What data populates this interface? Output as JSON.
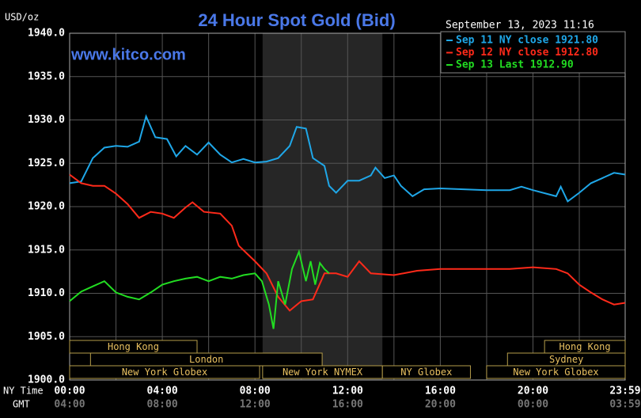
{
  "chart_data": {
    "type": "line",
    "title": "24 Hour Spot Gold (Bid)",
    "watermark": "www.kitco.com",
    "timestamp": "September 13, 2023 11:16",
    "y_label": "USD/oz",
    "x_label": "NY Time",
    "x2_label": "GMT",
    "xlim": [
      0,
      23.98
    ],
    "xticks": [
      {
        "value": 0,
        "label": "00:00"
      },
      {
        "value": 4,
        "label": "04:00"
      },
      {
        "value": 8,
        "label": "08:00"
      },
      {
        "value": 12,
        "label": "12:00"
      },
      {
        "value": 16,
        "label": "16:00"
      },
      {
        "value": 20,
        "label": "20:00"
      },
      {
        "value": 23.98,
        "label": "23:59"
      }
    ],
    "x2ticklabels": [
      "04:00",
      "08:00",
      "12:00",
      "16:00",
      "20:00",
      "00:00",
      "03:59"
    ],
    "xminor": [
      2,
      6,
      10,
      14,
      18,
      22
    ],
    "ylim": [
      1900,
      1940
    ],
    "yticks": [
      {
        "value": 1900,
        "label": "1900.0"
      },
      {
        "value": 1905,
        "label": "1905.0"
      },
      {
        "value": 1910,
        "label": "1910.0"
      },
      {
        "value": 1915,
        "label": "1915.0"
      },
      {
        "value": 1920,
        "label": "1920.0"
      },
      {
        "value": 1925,
        "label": "1925.0"
      },
      {
        "value": 1930,
        "label": "1930.0"
      },
      {
        "value": 1935,
        "label": "1935.0"
      },
      {
        "value": 1940,
        "label": "1940.0"
      }
    ],
    "grid": true,
    "highlight": [
      8.33,
      13.5
    ],
    "sessions": [
      [
        {
          "name": "Hong Kong",
          "start": 0,
          "end": 5.5
        },
        {
          "name": "Hong Kong",
          "start": 20.5,
          "end": 23.98
        }
      ],
      [
        {
          "name": "London",
          "start": 0.9,
          "end": 10.9
        },
        {
          "name": "Sydney",
          "start": 18.9,
          "end": 23.98
        }
      ],
      [
        {
          "name": "New York Globex",
          "start": 0,
          "end": 8.2
        },
        {
          "name": "New York NYMEX",
          "start": 8.33,
          "end": 13.5
        },
        {
          "name": "NY Globex",
          "start": 13.5,
          "end": 17.3
        },
        {
          "name": "New York Globex",
          "start": 18,
          "end": 23.98
        }
      ]
    ],
    "series": [
      {
        "name": "Sep 11 NY close 1921.80",
        "color": "#1fa7e8",
        "x": [
          0,
          0.5,
          1,
          1.5,
          2,
          2.5,
          3,
          3.3,
          3.7,
          4.2,
          4.6,
          5,
          5.5,
          6,
          6.5,
          7,
          7.5,
          8,
          8.5,
          9,
          9.5,
          9.8,
          10.2,
          10.5,
          11,
          11.2,
          11.5,
          12,
          12.5,
          13,
          13.2,
          13.6,
          14,
          14.3,
          14.8,
          15.3,
          16,
          17,
          18,
          19,
          19.5,
          20,
          21,
          21.2,
          21.5,
          22,
          22.5,
          23,
          23.5,
          23.98
        ],
        "values": [
          1922.7,
          1922.9,
          1925.6,
          1926.8,
          1927.0,
          1926.9,
          1927.5,
          1930.4,
          1928.0,
          1927.8,
          1925.8,
          1927.0,
          1926.0,
          1927.4,
          1926.0,
          1925.1,
          1925.5,
          1925.1,
          1925.2,
          1925.6,
          1927.0,
          1929.2,
          1929.0,
          1925.6,
          1924.7,
          1922.4,
          1921.6,
          1923.0,
          1923.0,
          1923.6,
          1924.5,
          1923.3,
          1923.6,
          1922.4,
          1921.2,
          1922.0,
          1922.1,
          1922.0,
          1921.9,
          1921.9,
          1922.3,
          1921.9,
          1921.2,
          1922.3,
          1920.6,
          1921.6,
          1922.7,
          1923.3,
          1923.9,
          1923.7
        ]
      },
      {
        "name": "Sep 12 NY close 1912.80",
        "color": "#ff2a1a",
        "x": [
          0,
          0.5,
          1,
          1.5,
          2,
          2.5,
          3,
          3.5,
          4,
          4.5,
          5,
          5.3,
          5.8,
          6.5,
          7,
          7.3,
          8,
          8.5,
          9,
          9.5,
          10,
          10.5,
          11,
          11.5,
          12,
          12.5,
          13,
          14,
          15,
          16,
          17,
          18,
          19,
          20,
          21,
          21.5,
          22,
          22.5,
          23,
          23.5,
          23.98
        ],
        "values": [
          1923.7,
          1922.7,
          1922.4,
          1922.4,
          1921.5,
          1920.3,
          1918.7,
          1919.4,
          1919.2,
          1918.7,
          1919.9,
          1920.5,
          1919.4,
          1919.2,
          1917.8,
          1915.5,
          1913.7,
          1912.3,
          1909.6,
          1908.0,
          1909.1,
          1909.3,
          1912.3,
          1912.3,
          1911.9,
          1913.7,
          1912.3,
          1912.1,
          1912.6,
          1912.8,
          1912.8,
          1912.8,
          1912.8,
          1913.0,
          1912.8,
          1912.3,
          1911.0,
          1910.1,
          1909.3,
          1908.7,
          1908.9
        ]
      },
      {
        "name": "Sep 13 Last 1912.90",
        "color": "#22dd22",
        "x": [
          0,
          0.5,
          1,
          1.5,
          2,
          2.5,
          3,
          3.5,
          4,
          4.5,
          5,
          5.5,
          6,
          6.5,
          7,
          7.5,
          8,
          8.3,
          8.6,
          8.8,
          9,
          9.3,
          9.6,
          9.9,
          10.2,
          10.4,
          10.6,
          10.8,
          11,
          11.2
        ],
        "values": [
          1909.1,
          1910.2,
          1910.8,
          1911.4,
          1910.1,
          1909.6,
          1909.3,
          1910.1,
          1911.0,
          1911.4,
          1911.7,
          1911.9,
          1911.4,
          1911.9,
          1911.7,
          1912.1,
          1912.3,
          1911.4,
          1908.7,
          1905.9,
          1911.4,
          1908.7,
          1912.8,
          1914.8,
          1911.4,
          1913.7,
          1911.0,
          1913.5,
          1912.8,
          1912.3
        ]
      }
    ]
  }
}
